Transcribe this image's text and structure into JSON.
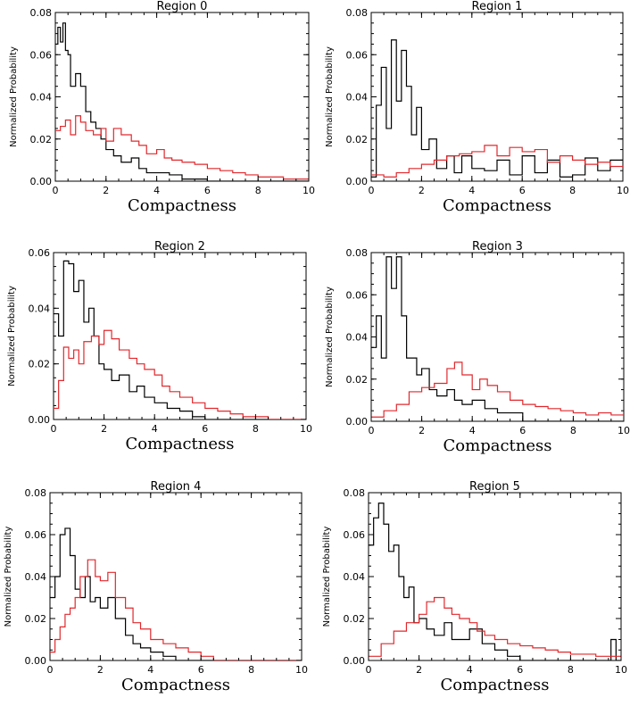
{
  "colors": {
    "black_series": "#000000",
    "red_series": "#e0282d"
  },
  "chart_data": [
    {
      "type": "line",
      "title": "Region 0",
      "xlabel": "Compactness",
      "ylabel": "Normalized Probability",
      "xlim": [
        0,
        10
      ],
      "ylim": [
        0,
        0.08
      ],
      "x_ticks": [
        "0",
        "2",
        "4",
        "6",
        "8",
        "10"
      ],
      "y_ticks": [
        "0.00",
        "0.02",
        "0.04",
        "0.06",
        "0.08"
      ],
      "grid": false,
      "step": "histogram",
      "series": [
        {
          "color": "#000000",
          "x": [
            0,
            0.1,
            0.2,
            0.3,
            0.4,
            0.5,
            0.6,
            0.8,
            1.0,
            1.2,
            1.4,
            1.6,
            1.8,
            2.0,
            2.3,
            2.6,
            3.0,
            3.3,
            3.6,
            4.0,
            4.5,
            5.0,
            6.0,
            10.0
          ],
          "values": [
            0.065,
            0.073,
            0.066,
            0.075,
            0.062,
            0.06,
            0.045,
            0.051,
            0.045,
            0.033,
            0.028,
            0.025,
            0.02,
            0.015,
            0.012,
            0.009,
            0.011,
            0.006,
            0.004,
            0.004,
            0.003,
            0.001,
            0.0,
            0.0
          ]
        },
        {
          "color": "#e0282d",
          "x": [
            0,
            0.2,
            0.4,
            0.6,
            0.8,
            1.0,
            1.2,
            1.5,
            1.8,
            2.0,
            2.3,
            2.6,
            3.0,
            3.3,
            3.6,
            4.0,
            4.3,
            4.6,
            5.0,
            5.5,
            6.0,
            6.5,
            7.0,
            7.5,
            8.0,
            8.5,
            9.0,
            9.5
          ],
          "values": [
            0.024,
            0.026,
            0.029,
            0.022,
            0.031,
            0.028,
            0.024,
            0.022,
            0.025,
            0.019,
            0.025,
            0.022,
            0.019,
            0.017,
            0.013,
            0.015,
            0.011,
            0.01,
            0.009,
            0.008,
            0.006,
            0.005,
            0.004,
            0.003,
            0.002,
            0.002,
            0.001,
            0.001
          ]
        }
      ]
    },
    {
      "type": "line",
      "title": "Region 1",
      "xlabel": "Compactness",
      "ylabel": "Normalized Probability",
      "xlim": [
        0,
        10
      ],
      "ylim": [
        0,
        0.08
      ],
      "x_ticks": [
        "0",
        "2",
        "4",
        "6",
        "8",
        "10"
      ],
      "y_ticks": [
        "0.00",
        "0.02",
        "0.04",
        "0.06",
        "0.08"
      ],
      "grid": false,
      "step": "histogram",
      "series": [
        {
          "color": "#000000",
          "x": [
            0,
            0.2,
            0.4,
            0.6,
            0.8,
            1.0,
            1.2,
            1.4,
            1.6,
            1.8,
            2.0,
            2.3,
            2.6,
            3.0,
            3.3,
            3.6,
            4.0,
            4.5,
            5.0,
            5.5,
            6.0,
            6.5,
            7.0,
            7.5,
            8.0,
            8.5,
            9.0,
            9.5
          ],
          "values": [
            0.002,
            0.036,
            0.054,
            0.025,
            0.067,
            0.038,
            0.062,
            0.045,
            0.022,
            0.035,
            0.015,
            0.02,
            0.006,
            0.012,
            0.004,
            0.012,
            0.006,
            0.005,
            0.01,
            0.003,
            0.012,
            0.004,
            0.01,
            0.002,
            0.003,
            0.011,
            0.005,
            0.01
          ]
        },
        {
          "color": "#e0282d",
          "x": [
            0,
            0.5,
            1.0,
            1.5,
            2.0,
            2.5,
            3.0,
            3.5,
            4.0,
            4.5,
            5.0,
            5.5,
            6.0,
            6.5,
            7.0,
            7.5,
            8.0,
            8.5,
            9.0,
            9.5
          ],
          "values": [
            0.003,
            0.002,
            0.004,
            0.006,
            0.008,
            0.01,
            0.012,
            0.013,
            0.014,
            0.017,
            0.012,
            0.016,
            0.014,
            0.015,
            0.009,
            0.012,
            0.01,
            0.008,
            0.009,
            0.007
          ]
        }
      ]
    },
    {
      "type": "line",
      "title": "Region 2",
      "xlabel": "Compactness",
      "ylabel": "Normalized Probability",
      "xlim": [
        0,
        10
      ],
      "ylim": [
        0,
        0.06
      ],
      "x_ticks": [
        "0",
        "2",
        "4",
        "6",
        "8",
        "10"
      ],
      "y_ticks": [
        "0.00",
        "0.02",
        "0.04",
        "0.06"
      ],
      "grid": false,
      "step": "histogram",
      "series": [
        {
          "color": "#000000",
          "x": [
            0,
            0.2,
            0.4,
            0.6,
            0.8,
            1.0,
            1.2,
            1.4,
            1.6,
            1.8,
            2.0,
            2.3,
            2.6,
            3.0,
            3.3,
            3.6,
            4.0,
            4.5,
            5.0,
            5.5,
            6.0,
            10.0
          ],
          "values": [
            0.038,
            0.03,
            0.057,
            0.056,
            0.046,
            0.05,
            0.035,
            0.04,
            0.03,
            0.02,
            0.018,
            0.014,
            0.016,
            0.01,
            0.012,
            0.008,
            0.006,
            0.004,
            0.003,
            0.001,
            0.0,
            0.0
          ]
        },
        {
          "color": "#e0282d",
          "x": [
            0,
            0.2,
            0.4,
            0.6,
            0.8,
            1.0,
            1.2,
            1.5,
            1.8,
            2.0,
            2.3,
            2.6,
            3.0,
            3.3,
            3.6,
            4.0,
            4.3,
            4.6,
            5.0,
            5.5,
            6.0,
            6.5,
            7.0,
            7.5,
            8.0,
            8.5,
            9.0
          ],
          "values": [
            0.004,
            0.014,
            0.026,
            0.022,
            0.025,
            0.02,
            0.028,
            0.03,
            0.027,
            0.032,
            0.029,
            0.025,
            0.022,
            0.02,
            0.018,
            0.016,
            0.012,
            0.01,
            0.008,
            0.006,
            0.004,
            0.003,
            0.002,
            0.001,
            0.001,
            0.0,
            0.0
          ]
        }
      ]
    },
    {
      "type": "line",
      "title": "Region 3",
      "xlabel": "Compactness",
      "ylabel": "Normalized Probability",
      "xlim": [
        0,
        10
      ],
      "ylim": [
        0,
        0.08
      ],
      "x_ticks": [
        "0",
        "2",
        "4",
        "6",
        "8",
        "10"
      ],
      "y_ticks": [
        "0.00",
        "0.02",
        "0.04",
        "0.06",
        "0.08"
      ],
      "grid": false,
      "step": "histogram",
      "series": [
        {
          "color": "#000000",
          "x": [
            0,
            0.2,
            0.4,
            0.6,
            0.8,
            1.0,
            1.2,
            1.4,
            1.6,
            1.8,
            2.0,
            2.3,
            2.6,
            3.0,
            3.3,
            3.6,
            4.0,
            4.5,
            5.0,
            5.5,
            6.0,
            10.0
          ],
          "values": [
            0.035,
            0.05,
            0.03,
            0.078,
            0.063,
            0.078,
            0.05,
            0.03,
            0.03,
            0.022,
            0.025,
            0.015,
            0.012,
            0.015,
            0.01,
            0.008,
            0.01,
            0.006,
            0.004,
            0.004,
            0.0,
            0.0
          ]
        },
        {
          "color": "#e0282d",
          "x": [
            0,
            0.5,
            1.0,
            1.5,
            2.0,
            2.5,
            3.0,
            3.3,
            3.6,
            4.0,
            4.3,
            4.6,
            5.0,
            5.5,
            6.0,
            6.5,
            7.0,
            7.5,
            8.0,
            8.5,
            9.0,
            9.5
          ],
          "values": [
            0.002,
            0.005,
            0.008,
            0.014,
            0.016,
            0.018,
            0.025,
            0.028,
            0.022,
            0.015,
            0.02,
            0.017,
            0.014,
            0.01,
            0.008,
            0.007,
            0.006,
            0.005,
            0.004,
            0.003,
            0.004,
            0.003
          ]
        }
      ]
    },
    {
      "type": "line",
      "title": "Region 4",
      "xlabel": "Compactness",
      "ylabel": "Normalized Probability",
      "xlim": [
        0,
        10
      ],
      "ylim": [
        0,
        0.08
      ],
      "x_ticks": [
        "0",
        "2",
        "4",
        "6",
        "8",
        "10"
      ],
      "y_ticks": [
        "0.00",
        "0.02",
        "0.04",
        "0.06",
        "0.08"
      ],
      "grid": false,
      "step": "histogram",
      "series": [
        {
          "color": "#000000",
          "x": [
            0,
            0.2,
            0.4,
            0.6,
            0.8,
            1.0,
            1.2,
            1.4,
            1.6,
            1.8,
            2.0,
            2.3,
            2.6,
            3.0,
            3.3,
            3.6,
            4.0,
            4.5,
            5.0,
            10.0
          ],
          "values": [
            0.03,
            0.04,
            0.06,
            0.063,
            0.05,
            0.034,
            0.03,
            0.04,
            0.028,
            0.03,
            0.025,
            0.03,
            0.02,
            0.012,
            0.008,
            0.006,
            0.004,
            0.002,
            0.0,
            0.0
          ]
        },
        {
          "color": "#e0282d",
          "x": [
            0,
            0.2,
            0.4,
            0.6,
            0.8,
            1.0,
            1.2,
            1.5,
            1.8,
            2.0,
            2.3,
            2.6,
            3.0,
            3.3,
            3.6,
            4.0,
            4.5,
            5.0,
            5.5,
            6.0,
            6.5,
            10.0
          ],
          "values": [
            0.004,
            0.01,
            0.016,
            0.022,
            0.025,
            0.03,
            0.04,
            0.048,
            0.04,
            0.038,
            0.042,
            0.03,
            0.025,
            0.018,
            0.015,
            0.01,
            0.008,
            0.006,
            0.004,
            0.002,
            0.0,
            0.0
          ]
        }
      ]
    },
    {
      "type": "line",
      "title": "Region 5",
      "xlabel": "Compactness",
      "ylabel": "Normalized Probability",
      "xlim": [
        0,
        10
      ],
      "ylim": [
        0,
        0.08
      ],
      "x_ticks": [
        "0",
        "2",
        "4",
        "6",
        "8",
        "10"
      ],
      "y_ticks": [
        "0.00",
        "0.02",
        "0.04",
        "0.06",
        "0.08"
      ],
      "grid": false,
      "step": "histogram",
      "series": [
        {
          "color": "#000000",
          "x": [
            0,
            0.2,
            0.4,
            0.6,
            0.8,
            1.0,
            1.2,
            1.4,
            1.6,
            1.8,
            2.0,
            2.3,
            2.6,
            3.0,
            3.3,
            3.6,
            4.0,
            4.5,
            5.0,
            5.5,
            6.0,
            9.6,
            9.8
          ],
          "values": [
            0.055,
            0.068,
            0.075,
            0.065,
            0.052,
            0.055,
            0.04,
            0.03,
            0.035,
            0.018,
            0.02,
            0.015,
            0.012,
            0.018,
            0.01,
            0.01,
            0.015,
            0.008,
            0.005,
            0.002,
            0.0,
            0.01,
            0.0
          ]
        },
        {
          "color": "#e0282d",
          "x": [
            0,
            0.5,
            1.0,
            1.5,
            2.0,
            2.3,
            2.6,
            3.0,
            3.3,
            3.6,
            4.0,
            4.3,
            4.6,
            5.0,
            5.5,
            6.0,
            6.5,
            7.0,
            7.5,
            8.0,
            8.5,
            9.0,
            9.5
          ],
          "values": [
            0.002,
            0.008,
            0.014,
            0.018,
            0.022,
            0.028,
            0.03,
            0.025,
            0.022,
            0.02,
            0.018,
            0.014,
            0.012,
            0.01,
            0.008,
            0.007,
            0.006,
            0.005,
            0.004,
            0.003,
            0.003,
            0.002,
            0.002
          ]
        }
      ]
    }
  ]
}
